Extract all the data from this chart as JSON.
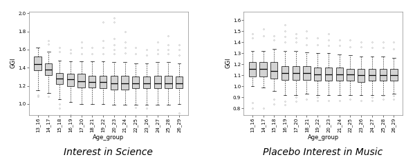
{
  "age_groups": [
    "13_16",
    "14_17",
    "15_18",
    "16_19",
    "17_20",
    "18_21",
    "19_22",
    "20_23",
    "21_24",
    "22_25",
    "23_26",
    "24_27",
    "25_28",
    "26_29"
  ],
  "science": {
    "ylabel": "GGI",
    "title": "Interest in Science",
    "ylim": [
      0.88,
      2.02
    ],
    "yticks": [
      1.0,
      1.2,
      1.4,
      1.6,
      1.8,
      2.0
    ],
    "ytick_labels": [
      "1.0",
      "1.2",
      "1.4",
      "1.6",
      "1.8",
      "2.0"
    ],
    "boxes": [
      {
        "med": 1.44,
        "q1": 1.37,
        "q3": 1.52,
        "whislo": 1.15,
        "whishi": 1.62,
        "fliers_low": [
          1.1,
          1.08
        ],
        "fliers_high": []
      },
      {
        "med": 1.38,
        "q1": 1.32,
        "q3": 1.45,
        "whislo": 1.12,
        "whishi": 1.58,
        "fliers_low": [
          1.08
        ],
        "fliers_high": [
          1.66,
          1.7
        ]
      },
      {
        "med": 1.28,
        "q1": 1.22,
        "q3": 1.34,
        "whislo": 1.05,
        "whishi": 1.48,
        "fliers_low": [
          0.95,
          1.0
        ],
        "fliers_high": [
          1.58,
          1.62
        ]
      },
      {
        "med": 1.27,
        "q1": 1.2,
        "q3": 1.33,
        "whislo": 1.02,
        "whishi": 1.47,
        "fliers_low": [
          0.88
        ],
        "fliers_high": [
          1.56,
          1.6
        ]
      },
      {
        "med": 1.25,
        "q1": 1.18,
        "q3": 1.33,
        "whislo": 1.0,
        "whishi": 1.47,
        "fliers_low": [],
        "fliers_high": [
          1.55,
          1.62,
          1.68
        ]
      },
      {
        "med": 1.24,
        "q1": 1.18,
        "q3": 1.31,
        "whislo": 1.0,
        "whishi": 1.47,
        "fliers_low": [],
        "fliers_high": [
          1.55,
          1.62
        ]
      },
      {
        "med": 1.24,
        "q1": 1.17,
        "q3": 1.31,
        "whislo": 1.0,
        "whishi": 1.47,
        "fliers_low": [],
        "fliers_high": [
          1.55,
          1.62,
          1.7,
          1.9
        ]
      },
      {
        "med": 1.23,
        "q1": 1.16,
        "q3": 1.31,
        "whislo": 0.99,
        "whishi": 1.46,
        "fliers_low": [],
        "fliers_high": [
          1.55,
          1.6,
          1.65,
          1.72,
          1.9,
          1.95
        ]
      },
      {
        "med": 1.23,
        "q1": 1.16,
        "q3": 1.31,
        "whislo": 0.99,
        "whishi": 1.46,
        "fliers_low": [],
        "fliers_high": [
          1.56,
          1.62,
          1.68,
          1.8
        ]
      },
      {
        "med": 1.23,
        "q1": 1.17,
        "q3": 1.3,
        "whislo": 0.99,
        "whishi": 1.45,
        "fliers_low": [
          0.96
        ],
        "fliers_high": [
          1.55,
          1.62
        ]
      },
      {
        "med": 1.23,
        "q1": 1.17,
        "q3": 1.3,
        "whislo": 0.99,
        "whishi": 1.45,
        "fliers_low": [
          0.95
        ],
        "fliers_high": [
          1.54,
          1.6
        ]
      },
      {
        "med": 1.23,
        "q1": 1.17,
        "q3": 1.31,
        "whislo": 0.99,
        "whishi": 1.46,
        "fliers_low": [],
        "fliers_high": [
          1.55,
          1.6,
          1.68
        ]
      },
      {
        "med": 1.23,
        "q1": 1.17,
        "q3": 1.31,
        "whislo": 0.99,
        "whishi": 1.46,
        "fliers_low": [],
        "fliers_high": [
          1.55,
          1.6,
          1.65,
          1.75
        ]
      },
      {
        "med": 1.23,
        "q1": 1.17,
        "q3": 1.3,
        "whislo": 1.0,
        "whishi": 1.45,
        "fliers_low": [
          0.9
        ],
        "fliers_high": [
          1.54,
          1.6,
          1.65
        ]
      }
    ]
  },
  "music": {
    "ylabel": "GGI",
    "title": "Placebo Interest in Music",
    "ylim": [
      0.74,
      1.68
    ],
    "yticks": [
      0.8,
      0.9,
      1.0,
      1.1,
      1.2,
      1.3,
      1.4,
      1.5,
      1.6
    ],
    "ytick_labels": [
      "0.8",
      "0.9",
      "1.0",
      "1.1",
      "1.2",
      "1.3",
      "1.4",
      "1.5",
      "1.6"
    ],
    "boxes": [
      {
        "med": 1.16,
        "q1": 1.09,
        "q3": 1.22,
        "whislo": 1.0,
        "whishi": 1.32,
        "fliers_low": [
          0.8,
          0.85
        ],
        "fliers_high": [
          1.44,
          1.48
        ]
      },
      {
        "med": 1.16,
        "q1": 1.09,
        "q3": 1.22,
        "whislo": 0.99,
        "whishi": 1.32,
        "fliers_low": [
          0.8
        ],
        "fliers_high": [
          1.46,
          1.52
        ]
      },
      {
        "med": 1.14,
        "q1": 1.07,
        "q3": 1.22,
        "whislo": 0.96,
        "whishi": 1.34,
        "fliers_low": [
          0.84,
          0.88
        ],
        "fliers_high": [
          1.42,
          1.46
        ]
      },
      {
        "med": 1.12,
        "q1": 1.06,
        "q3": 1.18,
        "whislo": 0.92,
        "whishi": 1.32,
        "fliers_low": [
          0.83,
          0.86
        ],
        "fliers_high": [
          1.4,
          1.45,
          1.5,
          1.56
        ]
      },
      {
        "med": 1.12,
        "q1": 1.06,
        "q3": 1.18,
        "whislo": 0.92,
        "whishi": 1.32,
        "fliers_low": [
          0.86,
          0.9
        ],
        "fliers_high": [
          1.4,
          1.44,
          1.48
        ]
      },
      {
        "med": 1.12,
        "q1": 1.06,
        "q3": 1.18,
        "whislo": 0.93,
        "whishi": 1.31,
        "fliers_low": [
          0.88
        ],
        "fliers_high": [
          1.38,
          1.44,
          1.5
        ]
      },
      {
        "med": 1.11,
        "q1": 1.05,
        "q3": 1.17,
        "whislo": 0.92,
        "whishi": 1.3,
        "fliers_low": [
          0.87,
          0.9
        ],
        "fliers_high": [
          1.38,
          1.44
        ]
      },
      {
        "med": 1.11,
        "q1": 1.05,
        "q3": 1.17,
        "whislo": 0.92,
        "whishi": 1.3,
        "fliers_low": [
          0.87
        ],
        "fliers_high": [
          1.37,
          1.42,
          1.48
        ]
      },
      {
        "med": 1.11,
        "q1": 1.05,
        "q3": 1.17,
        "whislo": 0.92,
        "whishi": 1.29,
        "fliers_low": [
          0.87
        ],
        "fliers_high": [
          1.37,
          1.42
        ]
      },
      {
        "med": 1.11,
        "q1": 1.05,
        "q3": 1.16,
        "whislo": 0.92,
        "whishi": 1.28,
        "fliers_low": [
          0.88
        ],
        "fliers_high": [
          1.36,
          1.42
        ]
      },
      {
        "med": 1.1,
        "q1": 1.04,
        "q3": 1.16,
        "whislo": 0.92,
        "whishi": 1.27,
        "fliers_low": [
          0.87
        ],
        "fliers_high": [
          1.36,
          1.4
        ]
      },
      {
        "med": 1.1,
        "q1": 1.05,
        "q3": 1.16,
        "whislo": 0.92,
        "whishi": 1.27,
        "fliers_low": [
          0.87,
          0.9
        ],
        "fliers_high": [
          1.35,
          1.4
        ]
      },
      {
        "med": 1.1,
        "q1": 1.05,
        "q3": 1.16,
        "whislo": 0.92,
        "whishi": 1.27,
        "fliers_low": [
          0.88,
          0.91
        ],
        "fliers_high": [
          1.35,
          1.4
        ]
      },
      {
        "med": 1.1,
        "q1": 1.05,
        "q3": 1.16,
        "whislo": 0.93,
        "whishi": 1.26,
        "fliers_low": [
          0.88,
          0.91
        ],
        "fliers_high": [
          1.34,
          1.4
        ]
      }
    ]
  },
  "box_color": "#d3d3d3",
  "median_color": "#000000",
  "whisker_color": "#000000",
  "flier_color": "#aaaaaa",
  "background_color": "#ffffff",
  "title_fontsize": 10,
  "axis_label_fontsize": 6,
  "tick_fontsize": 5
}
